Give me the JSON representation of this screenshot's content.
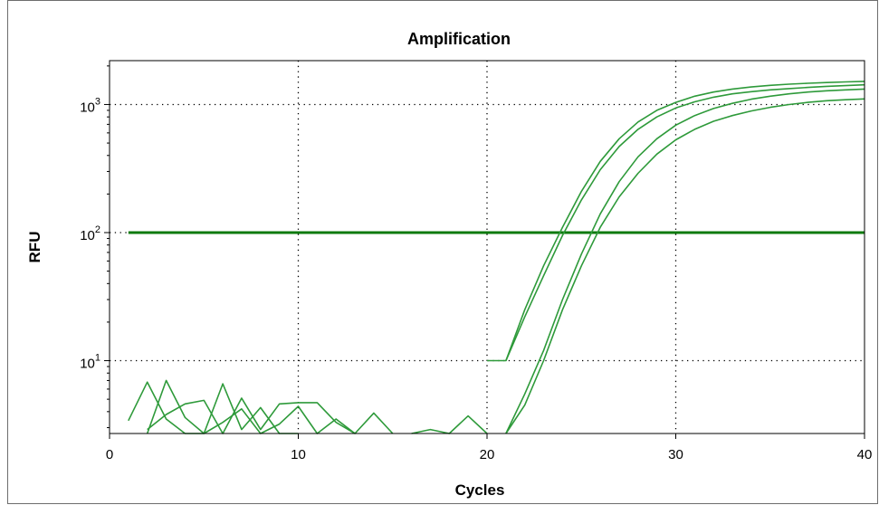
{
  "chart_data": {
    "type": "line",
    "title": "Amplification",
    "xlabel": "Cycles",
    "ylabel": "RFU",
    "xlim": [
      0,
      40
    ],
    "ylim": [
      2.7,
      2200
    ],
    "yscale": "log",
    "grid": true,
    "x_ticks": [
      0,
      10,
      20,
      30,
      40
    ],
    "y_ticks": [
      {
        "value": 10,
        "base": "10",
        "exp": "1"
      },
      {
        "value": 100,
        "base": "10",
        "exp": "2"
      },
      {
        "value": 1000,
        "base": "10",
        "exp": "3"
      }
    ],
    "threshold": {
      "value": 100,
      "x_start": 1,
      "x_end": 40,
      "color": "#0d7a0d"
    },
    "line_color": "#2e9a3a",
    "series": [
      {
        "x": [
          21,
          22,
          23,
          24,
          25,
          26,
          27,
          28,
          29,
          30,
          31,
          32,
          33,
          34,
          35,
          36,
          37,
          38,
          39,
          40
        ],
        "values": [
          10,
          22,
          46,
          95,
          180,
          310,
          470,
          640,
          800,
          940,
          1050,
          1140,
          1210,
          1260,
          1300,
          1330,
          1360,
          1385,
          1405,
          1425
        ]
      },
      {
        "x": [
          20,
          21,
          22,
          23,
          24,
          25,
          26,
          27,
          28,
          29,
          30,
          31,
          32,
          33,
          34,
          35,
          36,
          37,
          38,
          39,
          40
        ],
        "values": [
          10,
          10,
          25,
          55,
          110,
          210,
          360,
          540,
          730,
          900,
          1040,
          1160,
          1250,
          1320,
          1370,
          1410,
          1440,
          1465,
          1485,
          1500,
          1515
        ]
      },
      {
        "x": [
          21,
          22,
          23,
          24,
          25,
          26,
          27,
          28,
          29,
          30,
          31,
          32,
          33,
          34,
          35,
          36,
          37,
          38,
          39,
          40
        ],
        "values": [
          2.7,
          5.5,
          12,
          30,
          68,
          140,
          250,
          390,
          540,
          690,
          820,
          930,
          1020,
          1100,
          1160,
          1210,
          1250,
          1280,
          1300,
          1320
        ]
      },
      {
        "x": [
          21,
          22,
          23,
          24,
          25,
          26,
          27,
          28,
          29,
          30,
          31,
          32,
          33,
          34,
          35,
          36,
          37,
          38,
          39,
          40
        ],
        "values": [
          2.7,
          4.5,
          10,
          25,
          55,
          110,
          190,
          290,
          410,
          530,
          640,
          740,
          820,
          890,
          950,
          1000,
          1040,
          1070,
          1090,
          1105
        ]
      },
      {
        "x": [
          1,
          2,
          3,
          4,
          5
        ],
        "values": [
          3.4,
          6.8,
          3.5,
          2.7,
          2.7
        ]
      },
      {
        "x": [
          2,
          3,
          4,
          5,
          6,
          7,
          8,
          9,
          10
        ],
        "values": [
          2.7,
          7,
          3.6,
          2.7,
          6.6,
          2.9,
          4.3,
          2.7,
          2.7
        ]
      },
      {
        "x": [
          2,
          3,
          4,
          5,
          6,
          7,
          8,
          9,
          10,
          11,
          12,
          13
        ],
        "values": [
          2.9,
          3.8,
          4.6,
          4.9,
          2.7,
          5.1,
          2.9,
          4.6,
          4.7,
          4.7,
          3.3,
          2.7
        ]
      },
      {
        "x": [
          5,
          6,
          7,
          8,
          9,
          10,
          11,
          12,
          13,
          14,
          15
        ],
        "values": [
          2.7,
          3.3,
          4.2,
          2.7,
          3.2,
          4.4,
          2.7,
          3.5,
          2.7,
          3.9,
          2.7
        ]
      },
      {
        "x": [
          16,
          17,
          18,
          19,
          20
        ],
        "values": [
          2.7,
          2.9,
          2.7,
          3.7,
          2.7
        ]
      }
    ]
  }
}
